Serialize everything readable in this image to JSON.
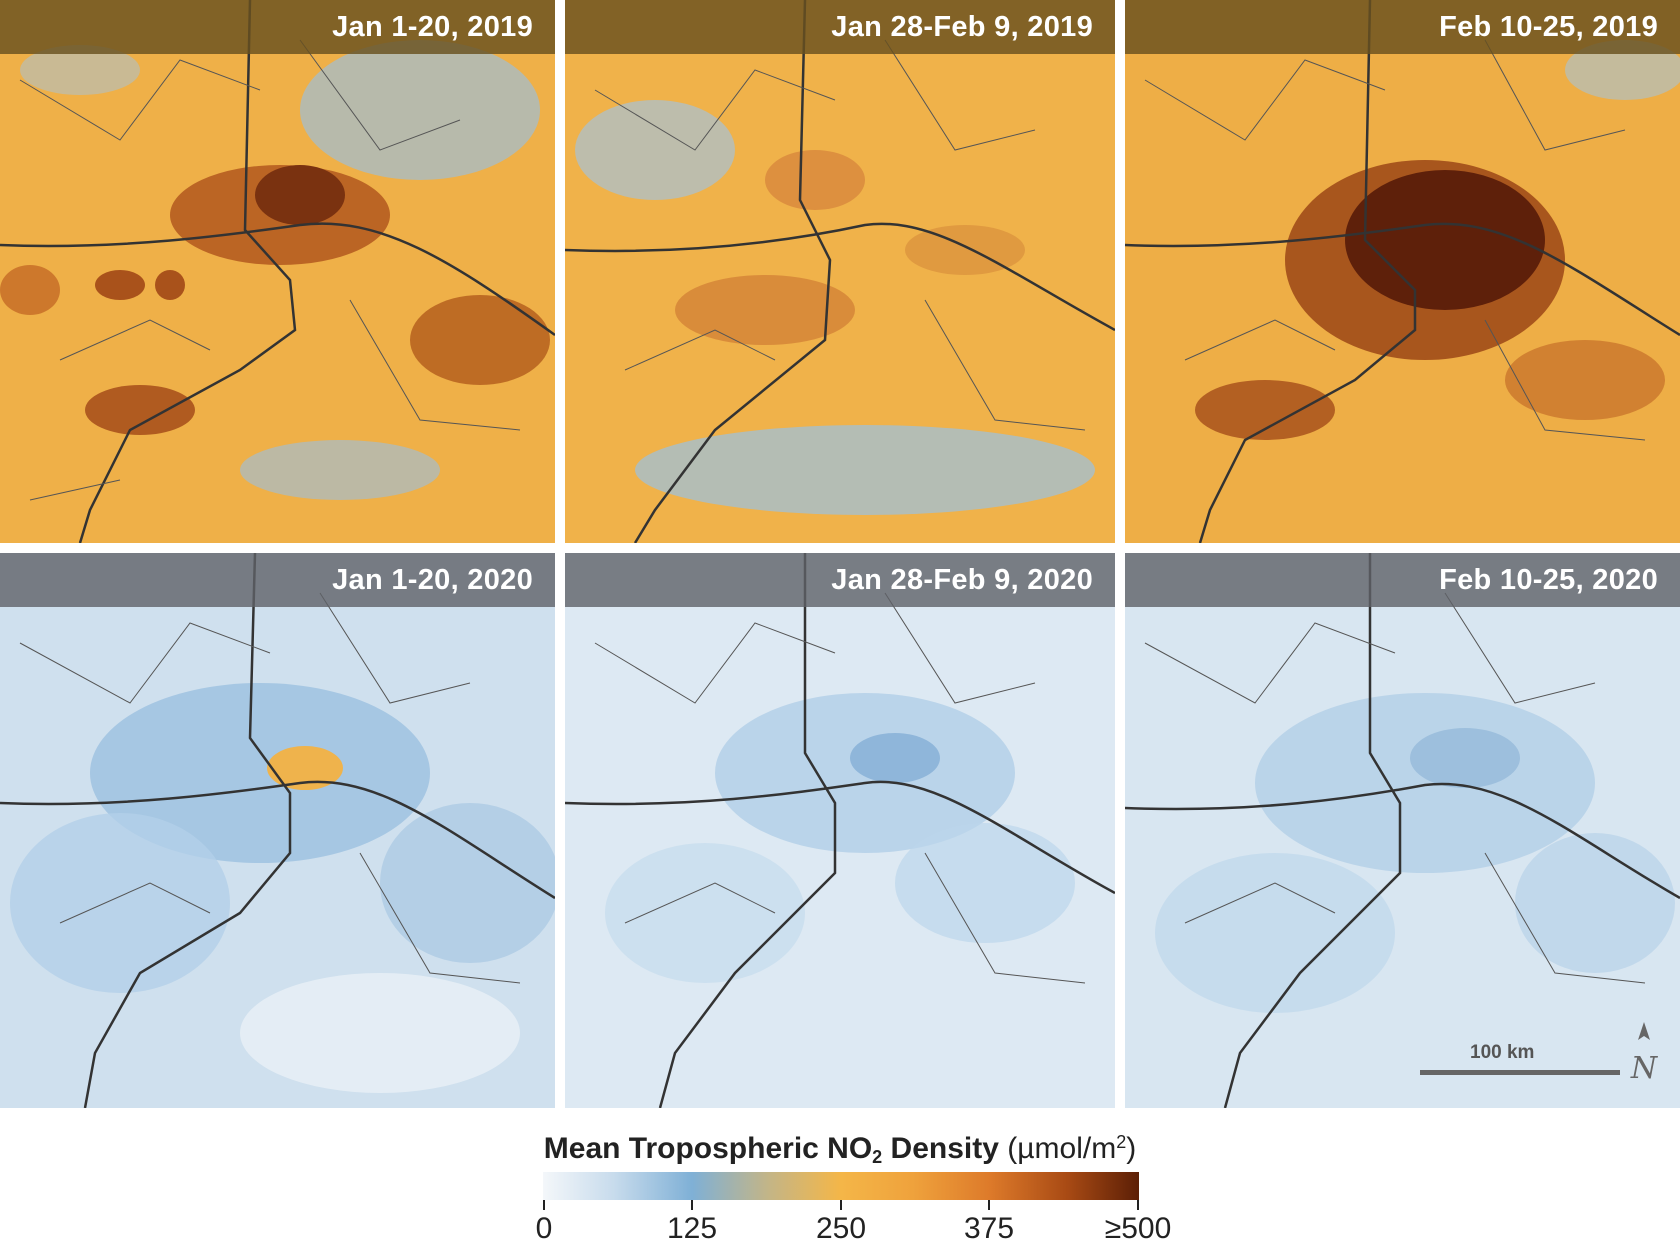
{
  "panels": [
    {
      "title": "Jan 1-20, 2019",
      "year": "2019",
      "no2_level": "high"
    },
    {
      "title": "Jan 28-Feb 9, 2019",
      "year": "2019",
      "no2_level": "moderate-high"
    },
    {
      "title": "Feb 10-25, 2019",
      "year": "2019",
      "no2_level": "very-high"
    },
    {
      "title": "Jan 1-20, 2020",
      "year": "2020",
      "no2_level": "moderate"
    },
    {
      "title": "Jan 28-Feb 9, 2020",
      "year": "2020",
      "no2_level": "low"
    },
    {
      "title": "Feb 10-25, 2020",
      "year": "2020",
      "no2_level": "low"
    }
  ],
  "scale": {
    "label": "100 km"
  },
  "north_arrow": {
    "label": "N"
  },
  "legend": {
    "title_pre": "Mean Tropospheric NO",
    "title_sub": "2",
    "title_post": " Density",
    "unit_pre": "(µmol/m",
    "unit_sup": "2",
    "unit_post": ")",
    "ticks": [
      "0",
      "125",
      "250",
      "375",
      "≥500"
    ],
    "colors": [
      "#f4f7fa",
      "#7fb0d6",
      "#f4b648",
      "#dd7a2a",
      "#5c1f06"
    ]
  }
}
